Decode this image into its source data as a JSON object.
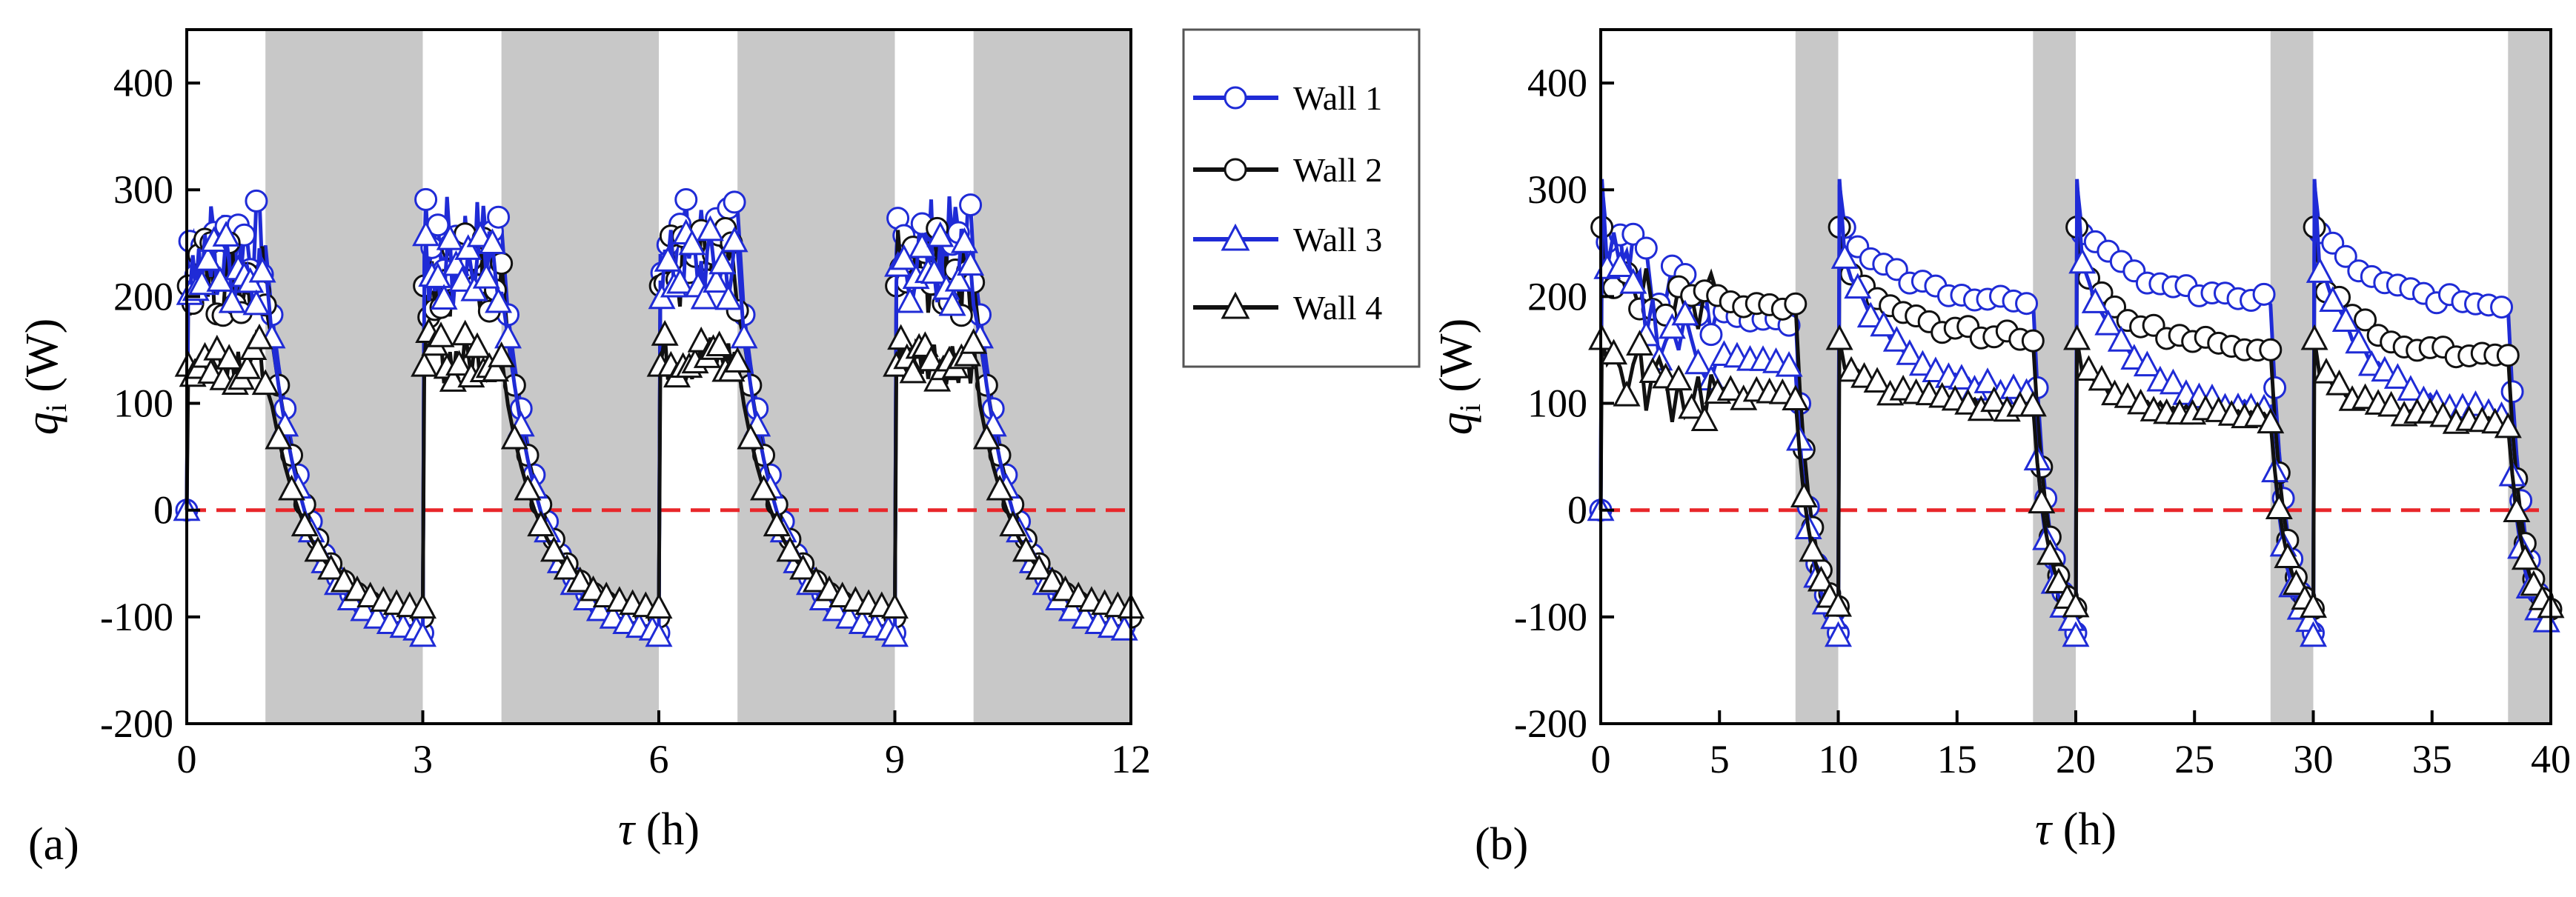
{
  "colors": {
    "blue": "#1f2bd6",
    "black": "#111111",
    "zero_line": "#e8262a",
    "shade": "#c8c8c8"
  },
  "legend": [
    {
      "label": "Wall 1",
      "color": "#1f2bd6",
      "marker": "circle"
    },
    {
      "label": "Wall 2",
      "color": "#111111",
      "marker": "circle"
    },
    {
      "label": "Wall 3",
      "color": "#1f2bd6",
      "marker": "triangle"
    },
    {
      "label": "Wall 4",
      "color": "#111111",
      "marker": "triangle"
    }
  ],
  "chart_data": [
    {
      "type": "line",
      "panel_label": "(a)",
      "xlabel": {
        "symbol": "τ",
        "unit": " (h)"
      },
      "ylabel": {
        "symbol": "q",
        "subscript": "i",
        "unit": " (W)"
      },
      "xlim": [
        0,
        12
      ],
      "ylim": [
        -200,
        450
      ],
      "xticks": [
        0,
        3,
        6,
        9,
        12
      ],
      "yticks": [
        -200,
        -100,
        0,
        100,
        200,
        300,
        400
      ],
      "zero_line": 0,
      "shaded_intervals": [
        [
          1,
          3
        ],
        [
          4,
          6
        ],
        [
          7,
          9
        ],
        [
          10,
          12
        ]
      ],
      "on_intervals": [
        [
          0,
          1
        ],
        [
          3,
          4
        ],
        [
          6,
          7
        ],
        [
          9,
          10
        ]
      ],
      "series": [
        {
          "name": "Wall 1",
          "peak": 310,
          "on_mean": 240,
          "off_min": -115,
          "spread": 60
        },
        {
          "name": "Wall 2",
          "peak": 290,
          "on_mean": 210,
          "off_min": -105,
          "spread": 60
        },
        {
          "name": "Wall 3",
          "peak": 305,
          "on_mean": 215,
          "off_min": -118,
          "spread": 55
        },
        {
          "name": "Wall 4",
          "peak": 200,
          "on_mean": 135,
          "off_min": -95,
          "spread": 35
        }
      ]
    },
    {
      "type": "line",
      "panel_label": "(b)",
      "xlabel": {
        "symbol": "τ",
        "unit": " (h)"
      },
      "ylabel": {
        "symbol": "q",
        "subscript": "i",
        "unit": " (W)"
      },
      "xlim": [
        0,
        40
      ],
      "ylim": [
        -200,
        450
      ],
      "xticks": [
        0,
        5,
        10,
        15,
        20,
        25,
        30,
        35,
        40
      ],
      "yticks": [
        -200,
        -100,
        0,
        100,
        200,
        300,
        400
      ],
      "zero_line": 0,
      "shaded_intervals": [
        [
          8.2,
          10
        ],
        [
          18.2,
          20
        ],
        [
          28.2,
          30
        ],
        [
          38.2,
          40
        ]
      ],
      "on_intervals": [
        [
          0,
          8.2
        ],
        [
          10,
          18.2
        ],
        [
          20,
          28.2
        ],
        [
          30,
          38.2
        ]
      ],
      "series": [
        {
          "name": "Wall 1",
          "peak": 305,
          "plateau": [
            175,
            195,
            195,
            190
          ],
          "off_min": -115
        },
        {
          "name": "Wall 2",
          "peak": 265,
          "plateau": [
            190,
            160,
            150,
            140
          ],
          "off_min": -105
        },
        {
          "name": "Wall 3",
          "peak": 310,
          "plateau": [
            130,
            105,
            90,
            85
          ],
          "off_min": -118
        },
        {
          "name": "Wall 4",
          "peak": 160,
          "plateau": [
            105,
            95,
            85,
            80
          ],
          "off_min": -100
        }
      ]
    }
  ]
}
